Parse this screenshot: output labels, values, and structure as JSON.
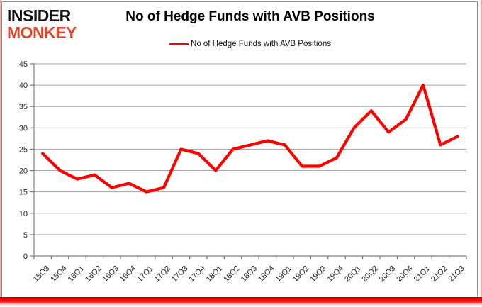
{
  "logo": {
    "line1": "INSIDER",
    "line2": "MONKEY"
  },
  "title": "No of Hedge Funds with AVB Positions",
  "legend": {
    "label": "No of Hedge Funds with AVB Positions"
  },
  "colors": {
    "line": "#FF0000",
    "grid": "#a6a6a6",
    "axis": "#808080",
    "logo_accent": "#d54a30",
    "bottom_bar": "#ff0000",
    "edge_border": "#f4aca4"
  },
  "chart_data": {
    "type": "line",
    "title": "No of Hedge Funds with AVB Positions",
    "xlabel": "",
    "ylabel": "",
    "categories": [
      "15Q3",
      "15Q4",
      "16Q1",
      "16Q2",
      "16Q3",
      "16Q4",
      "17Q1",
      "17Q2",
      "17Q3",
      "17Q4",
      "18Q1",
      "18Q2",
      "18Q3",
      "18Q4",
      "19Q1",
      "19Q2",
      "19Q3",
      "19Q4",
      "20Q1",
      "20Q2",
      "20Q3",
      "20Q4",
      "21Q1",
      "21Q2",
      "21Q3"
    ],
    "values": [
      24,
      20,
      18,
      19,
      16,
      17,
      15,
      16,
      25,
      24,
      20,
      25,
      26,
      27,
      26,
      21,
      21,
      23,
      30,
      34,
      29,
      32,
      40,
      26,
      28
    ],
    "ylim": [
      0,
      45
    ],
    "yticks": [
      0,
      5,
      10,
      15,
      20,
      25,
      30,
      35,
      40,
      45
    ],
    "grid": true,
    "legend_position": "top",
    "line_color": "#FF0000"
  }
}
